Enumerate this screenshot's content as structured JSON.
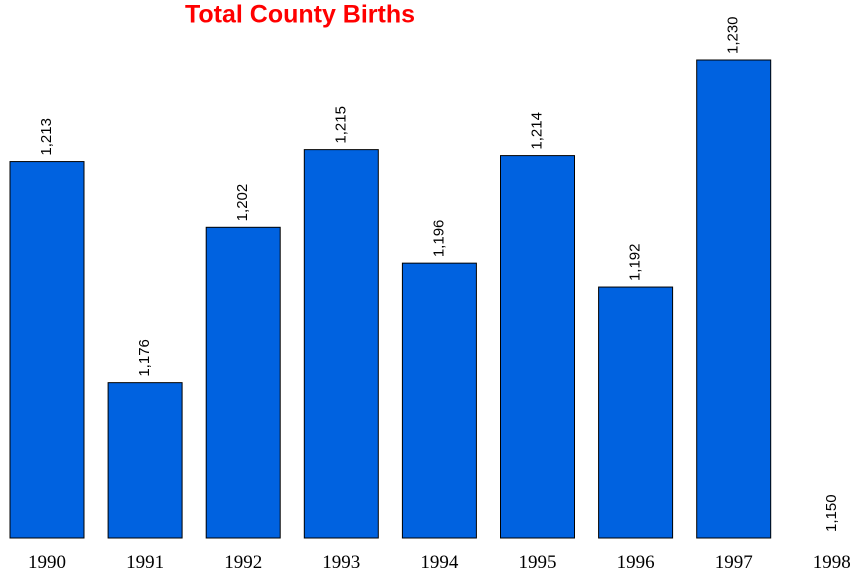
{
  "chart_data": {
    "type": "bar",
    "title": "Total County Births",
    "categories": [
      "1990",
      "1991",
      "1992",
      "1993",
      "1994",
      "1995",
      "1996",
      "1997",
      "1998"
    ],
    "values": [
      1213,
      1176,
      1202,
      1215,
      1196,
      1214,
      1192,
      1230,
      1150
    ],
    "value_labels": [
      "1,213",
      "1,176",
      "1,202",
      "1,215",
      "1,196",
      "1,214",
      "1,192",
      "1,230",
      "1,150"
    ],
    "color": "#0062e0",
    "ylim": [
      1150,
      1230
    ]
  }
}
